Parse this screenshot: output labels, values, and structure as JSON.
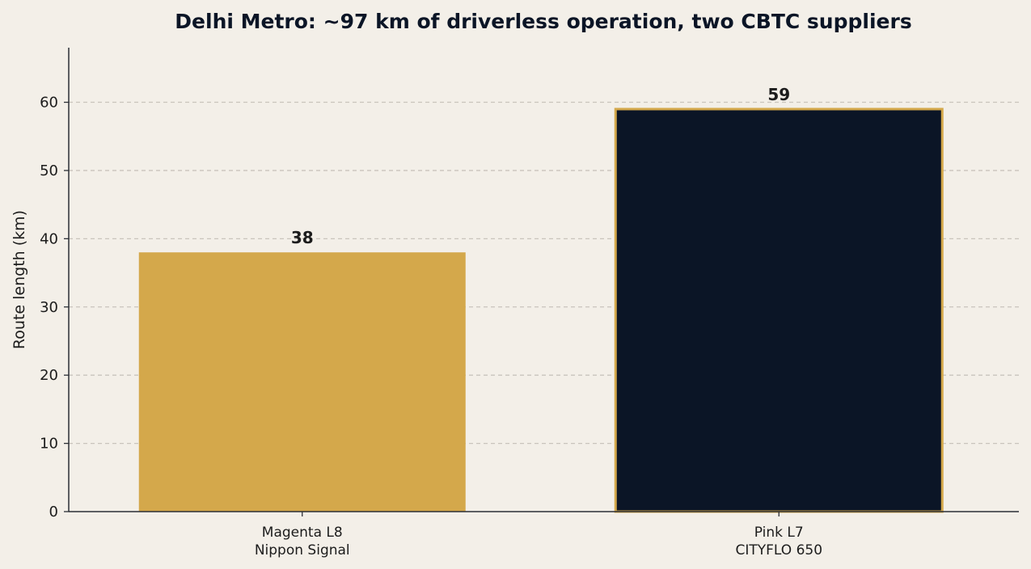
{
  "chart_data": {
    "type": "bar",
    "title": "Delhi Metro: ~97 km of driverless operation, two CBTC suppliers",
    "xlabel": "",
    "ylabel": "Route length (km)",
    "ylim": [
      0,
      68
    ],
    "yticks": [
      0,
      10,
      20,
      30,
      40,
      50,
      60
    ],
    "grid": true,
    "categories": [
      {
        "line": "Magenta L8",
        "supplier": "Nippon Signal"
      },
      {
        "line": "Pink L7",
        "supplier": "CITYFLO 650"
      }
    ],
    "values": [
      38,
      59
    ],
    "value_labels": [
      "38",
      "59"
    ]
  },
  "colors": {
    "background": "#f3efe8",
    "bar_magenta": "#d4a84b",
    "bar_pink": "#0b1526",
    "bar_pink_outline": "#d4a84b",
    "axis": "#2b2f36",
    "grid": "#c9c4bc",
    "title": "#0b1526",
    "text": "#1c1c1c"
  }
}
